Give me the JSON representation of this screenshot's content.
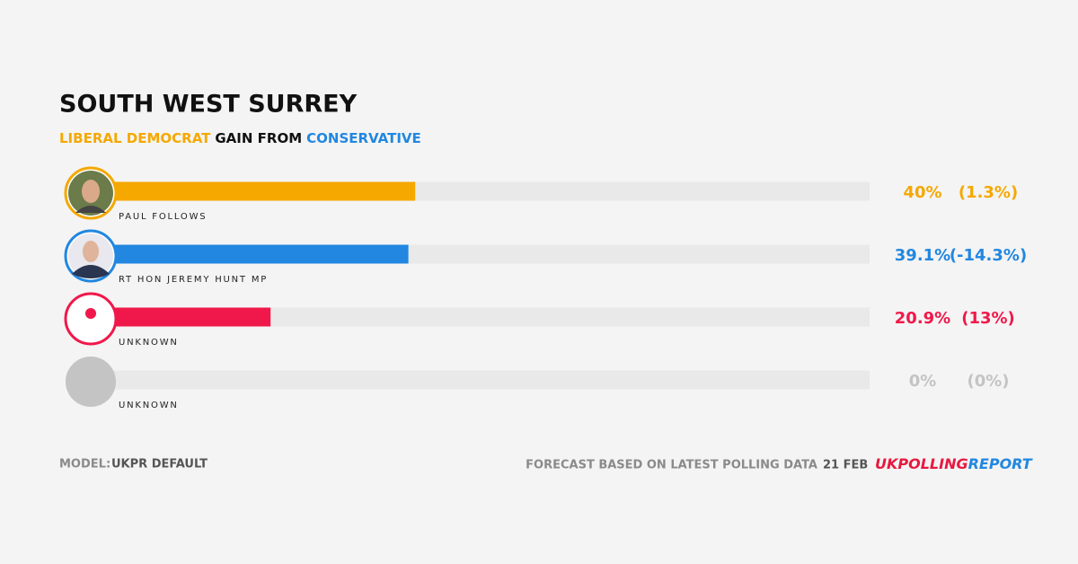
{
  "chart_data": {
    "type": "bar",
    "orientation": "horizontal",
    "title": "SOUTH WEST SURREY",
    "subtitle": [
      {
        "text": "LIBERAL DEMOCRAT",
        "color": "#f5a800"
      },
      {
        "text": "GAIN FROM",
        "color": "#111111"
      },
      {
        "text": "CONSERVATIVE",
        "color": "#2287e0"
      }
    ],
    "categories": [
      "PAUL FOLLOWS",
      "RT HON JEREMY HUNT MP",
      "UNKNOWN",
      "UNKNOWN"
    ],
    "values": [
      40,
      39.1,
      20.9,
      0
    ],
    "value_labels": [
      "40%",
      "39.1%",
      "20.9%",
      "0%"
    ],
    "changes": [
      1.3,
      -14.3,
      13,
      0
    ],
    "change_labels": [
      "(1.3%)",
      "(-14.3%)",
      "(13%)",
      "(0%)"
    ],
    "colors": [
      "#f5a800",
      "#2287e0",
      "#f0184a",
      "#c4c4c4"
    ],
    "xlim": [
      0,
      100
    ],
    "footer": {
      "model_label": "MODEL:",
      "model": "UKPR DEFAULT",
      "note": "FORECAST BASED ON LATEST POLLING DATA",
      "date": "21 FEB",
      "logo": [
        {
          "text": "UK",
          "color": "#e8183f"
        },
        {
          "text": "POLLING",
          "color": "#e8183f"
        },
        {
          "text": "REPORT",
          "color": "#2287e0"
        }
      ]
    }
  }
}
